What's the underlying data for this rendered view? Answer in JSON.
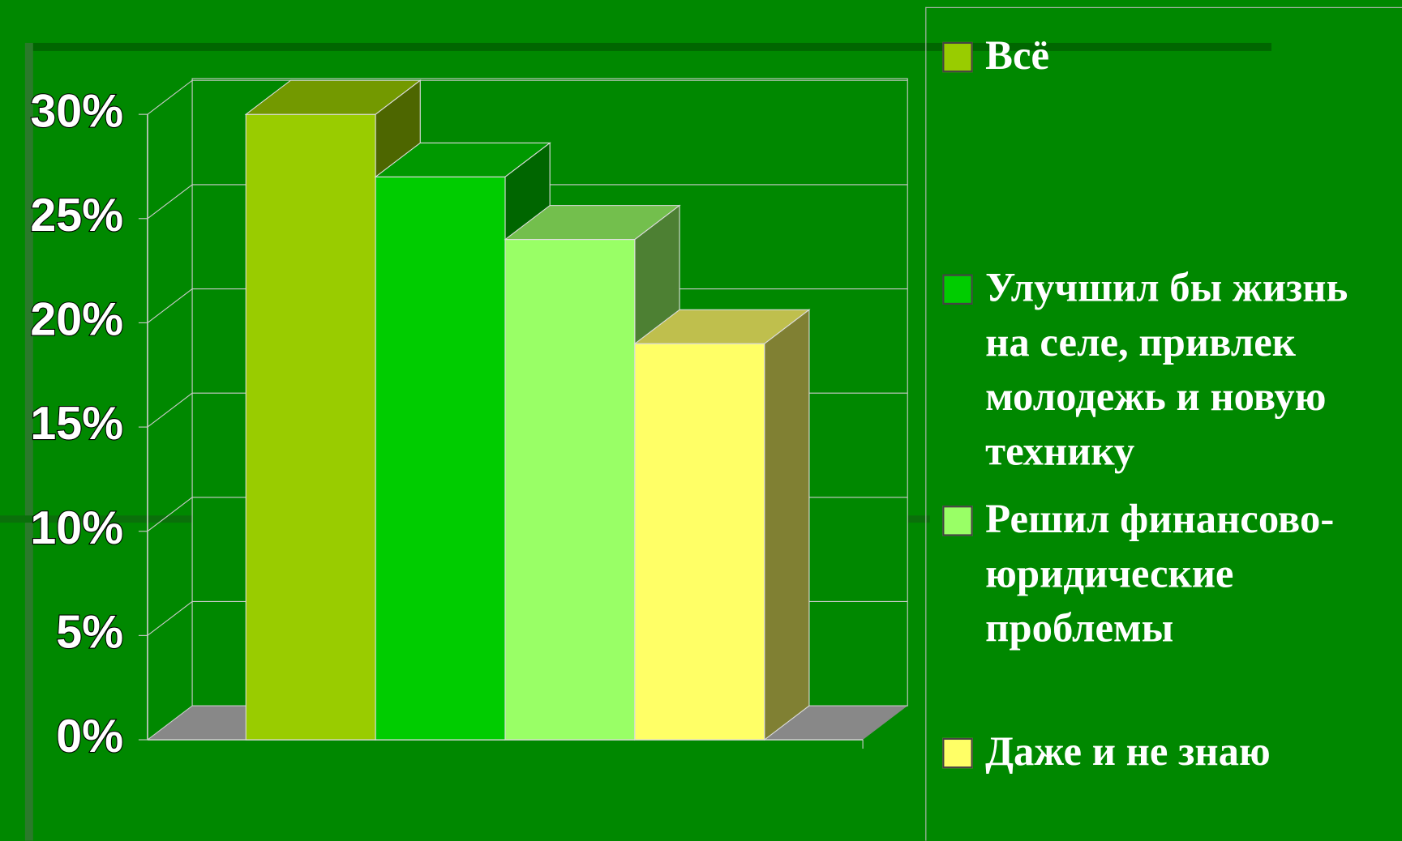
{
  "chart_data": {
    "type": "bar3d",
    "series": [
      {
        "name": "Всё",
        "color": "#99cc00",
        "values": [
          30
        ]
      },
      {
        "name": "Улучшил бы жизнь на селе, привлек молодежь и новую технику",
        "color": "#00cc00",
        "values": [
          27
        ]
      },
      {
        "name": "Решил финансово-юридические проблемы",
        "color": "#99ff66",
        "values": [
          24
        ]
      },
      {
        "name": "Даже и не знаю",
        "color": "#ffff66",
        "values": [
          19
        ]
      }
    ],
    "ylim": [
      0,
      30
    ],
    "yticks": [
      {
        "value": 0,
        "label": "0%"
      },
      {
        "value": 5,
        "label": "5%"
      },
      {
        "value": 10,
        "label": "10%"
      },
      {
        "value": 15,
        "label": "15%"
      },
      {
        "value": 20,
        "label": "20%"
      },
      {
        "value": 25,
        "label": "25%"
      },
      {
        "value": 30,
        "label": "30%"
      }
    ],
    "grid": true,
    "legend": "right"
  }
}
